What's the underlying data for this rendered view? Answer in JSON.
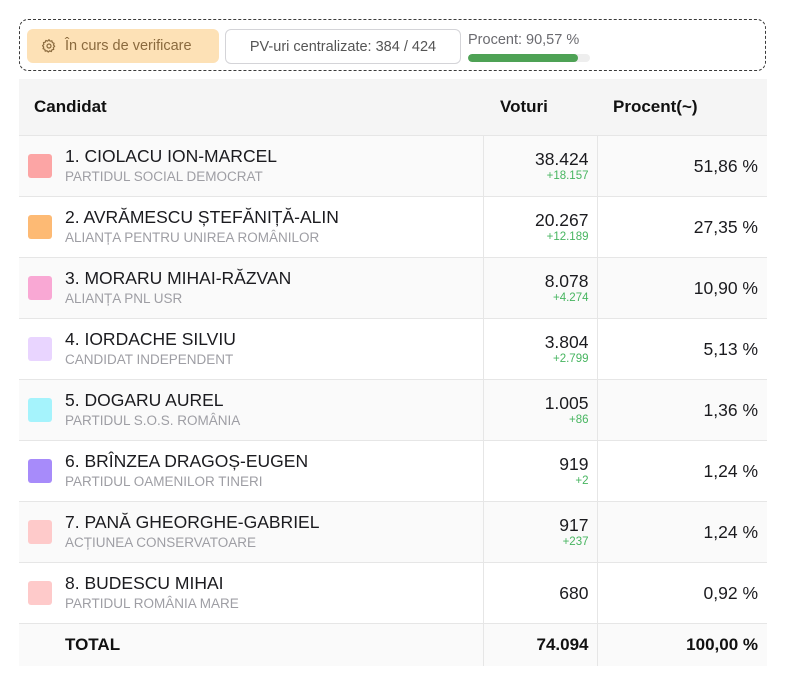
{
  "status": {
    "pill_label": "În curs de verificare",
    "pill_icon": "gear-icon",
    "pv_label": "PV-uri centralizate: 384 / 424",
    "percent_label": "Procent: 90,57 %",
    "percent_value": 0.9057,
    "progress_color": "#4ea255"
  },
  "table": {
    "headers": {
      "candidate": "Candidat",
      "votes": "Voturi",
      "percent": "Procent(~)"
    },
    "rows": [
      {
        "name": "1. CIOLACU ION-MARCEL",
        "party": "PARTIDUL SOCIAL DEMOCRAT",
        "votes": "38.424",
        "delta": "+18.157",
        "percent": "51,86 %",
        "color": "#fca5a5"
      },
      {
        "name": "2. AVRĂMESCU ȘTEFĂNIȚĂ-ALIN",
        "party": "ALIANȚA PENTRU UNIREA ROMÂNILOR",
        "votes": "20.267",
        "delta": "+12.189",
        "percent": "27,35 %",
        "color": "#fdba74"
      },
      {
        "name": "3. MORARU MIHAI-RĂZVAN",
        "party": "ALIANȚA PNL USR",
        "votes": "8.078",
        "delta": "+4.274",
        "percent": "10,90 %",
        "color": "#f9a8d4"
      },
      {
        "name": "4. IORDACHE SILVIU",
        "party": "CANDIDAT INDEPENDENT",
        "votes": "3.804",
        "delta": "+2.799",
        "percent": "5,13 %",
        "color": "#e9d5ff"
      },
      {
        "name": "5. DOGARU AUREL",
        "party": "PARTIDUL S.O.S. ROMÂNIA",
        "votes": "1.005",
        "delta": "+86",
        "percent": "1,36 %",
        "color": "#a5f3fc"
      },
      {
        "name": "6. BRÎNZEA DRAGOȘ-EUGEN",
        "party": "PARTIDUL OAMENILOR TINERI",
        "votes": "919",
        "delta": "+2",
        "percent": "1,24 %",
        "color": "#a78bfa"
      },
      {
        "name": "7. PANĂ GHEORGHE-GABRIEL",
        "party": "ACȚIUNEA CONSERVATOARE",
        "votes": "917",
        "delta": "+237",
        "percent": "1,24 %",
        "color": "#fecaca"
      },
      {
        "name": "8. BUDESCU MIHAI",
        "party": "PARTIDUL ROMÂNIA MARE",
        "votes": "680",
        "delta": "",
        "percent": "0,92 %",
        "color": "#fecaca"
      }
    ],
    "total": {
      "label": "TOTAL",
      "votes": "74.094",
      "percent": "100,00 %"
    }
  }
}
